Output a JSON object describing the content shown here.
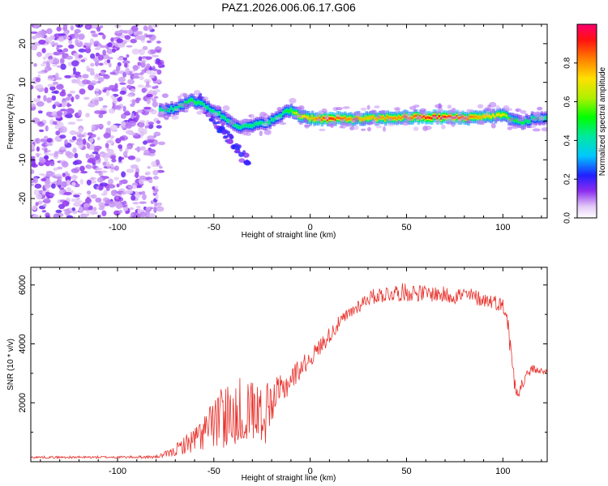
{
  "title": "PAZ1.2026.006.06.17.G06",
  "chart_data": [
    {
      "type": "heatmap",
      "xlabel": "Height of straight line (km)",
      "ylabel": "Frequency (Hz)",
      "xlim": [
        -145,
        123
      ],
      "ylim": [
        -25,
        25
      ],
      "xticks": [
        -100,
        -50,
        0,
        50,
        100
      ],
      "yticks": [
        -20,
        -10,
        0,
        10,
        20
      ],
      "colorbar_label": "Normalized spectral amplitude",
      "colorbar_ticks": [
        "0.0",
        "0.2",
        "0.4",
        "0.6",
        "0.8"
      ],
      "colorbar_range": [
        0,
        1
      ],
      "ridge": {
        "x": [
          -78,
          -70,
          -62,
          -55,
          -48,
          -42,
          -36,
          -30,
          -24,
          -18,
          -14,
          -10,
          -6,
          0,
          10,
          20,
          30,
          40,
          50,
          60,
          70,
          80,
          90,
          100,
          105,
          110,
          115,
          122
        ],
        "y": [
          2.8,
          3.2,
          5.5,
          4.0,
          2.0,
          0.0,
          -1.5,
          -1.2,
          -0.5,
          0.5,
          2.0,
          2.8,
          1.5,
          0.8,
          0.5,
          0.6,
          0.6,
          0.8,
          1.0,
          1.0,
          1.0,
          0.8,
          1.2,
          1.5,
          0.5,
          -0.5,
          0.5,
          0.7
        ],
        "amplitude": [
          0.45,
          0.45,
          0.5,
          0.45,
          0.45,
          0.45,
          0.45,
          0.45,
          0.45,
          0.45,
          0.45,
          0.55,
          0.7,
          0.75,
          0.9,
          0.8,
          0.75,
          0.8,
          0.8,
          0.9,
          0.9,
          0.85,
          0.75,
          0.7,
          0.5,
          0.5,
          0.45,
          0.45
        ]
      },
      "noise_region_x": [
        -145,
        -78
      ]
    },
    {
      "type": "line",
      "xlabel": "Height of straight line (km)",
      "ylabel": "SNR (10 * v/v)",
      "xlim": [
        -145,
        123
      ],
      "ylim": [
        0,
        6600
      ],
      "xticks": [
        -100,
        -50,
        0,
        50,
        100
      ],
      "yticks": [
        2000,
        4000,
        6000
      ],
      "color": "#e8302a",
      "series": [
        {
          "name": "SNR",
          "x": [
            -145,
            -120,
            -100,
            -80,
            -72,
            -66,
            -60,
            -55,
            -50,
            -45,
            -40,
            -35,
            -30,
            -25,
            -20,
            -15,
            -10,
            -5,
            0,
            5,
            10,
            15,
            20,
            25,
            30,
            35,
            40,
            45,
            50,
            55,
            60,
            65,
            70,
            75,
            80,
            85,
            90,
            95,
            100,
            102,
            104,
            106,
            108,
            110,
            112,
            115,
            118,
            122
          ],
          "mean": [
            150,
            150,
            155,
            160,
            300,
            550,
            750,
            1000,
            1300,
            1550,
            1700,
            1800,
            1850,
            1900,
            2100,
            2400,
            2800,
            3200,
            3500,
            3900,
            4300,
            4700,
            5000,
            5300,
            5550,
            5650,
            5700,
            5750,
            5750,
            5750,
            5700,
            5700,
            5650,
            5650,
            5650,
            5600,
            5500,
            5450,
            5300,
            5000,
            3800,
            2800,
            2400,
            2600,
            2900,
            3150,
            3100,
            3050
          ],
          "noise": [
            40,
            40,
            40,
            50,
            150,
            300,
            450,
            650,
            800,
            1100,
            1200,
            1150,
            1000,
            900,
            700,
            550,
            450,
            350,
            300,
            300,
            280,
            250,
            250,
            250,
            250,
            280,
            300,
            300,
            320,
            300,
            280,
            280,
            300,
            300,
            300,
            280,
            260,
            250,
            250,
            300,
            500,
            400,
            300,
            300,
            200,
            150,
            120,
            100
          ]
        }
      ]
    }
  ]
}
